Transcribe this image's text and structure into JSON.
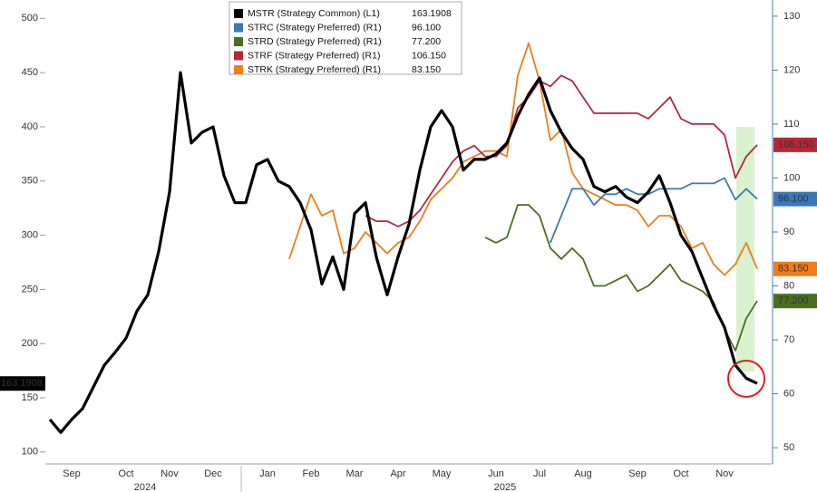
{
  "chart_data": {
    "type": "line",
    "categories": [
      null,
      null,
      "Sep",
      null,
      null,
      null,
      null,
      "Oct",
      null,
      null,
      null,
      "Nov",
      null,
      null,
      null,
      "Dec",
      null,
      null,
      null,
      null,
      "Jan",
      null,
      null,
      null,
      "Feb",
      null,
      null,
      null,
      "Mar",
      null,
      null,
      null,
      "Apr",
      null,
      null,
      null,
      "May",
      null,
      null,
      null,
      null,
      "Jun",
      null,
      null,
      null,
      "Jul",
      null,
      null,
      null,
      "Aug",
      null,
      null,
      null,
      null,
      "Sep",
      null,
      null,
      null,
      "Oct",
      null,
      null,
      null,
      "Nov",
      null,
      null,
      null
    ],
    "year_labels": [
      "2024",
      "2025"
    ],
    "ylim": [
      89,
      517
    ],
    "yticks": [
      100,
      150,
      200,
      250,
      300,
      350,
      400,
      450,
      500
    ],
    "y2lim": [
      47,
      133
    ],
    "y2ticks": [
      50,
      60,
      70,
      80,
      90,
      100,
      110,
      120,
      130
    ],
    "series": [
      {
        "name": "MSTR (Strategy Common) (L1)",
        "color": "#000000",
        "axis": "y",
        "values": [
          130,
          118,
          130,
          140,
          160,
          180,
          192,
          205,
          230,
          245,
          285,
          340,
          450,
          385,
          395,
          400,
          355,
          330,
          330,
          365,
          370,
          350,
          345,
          330,
          305,
          255,
          280,
          250,
          320,
          330,
          280,
          245,
          280,
          310,
          360,
          400,
          415,
          400,
          360,
          370,
          370,
          375,
          385,
          410,
          430,
          445,
          415,
          395,
          380,
          370,
          345,
          340,
          345,
          335,
          330,
          340,
          355,
          330,
          300,
          285,
          260,
          235,
          215,
          180,
          168,
          163.1908
        ]
      },
      {
        "name": "STRC (Strategy Preferred) (R1)",
        "color": "#3a78b5",
        "axis": "y2",
        "values": [
          null,
          null,
          null,
          null,
          null,
          null,
          null,
          null,
          null,
          null,
          null,
          null,
          null,
          null,
          null,
          null,
          null,
          null,
          null,
          null,
          null,
          null,
          null,
          null,
          null,
          null,
          null,
          null,
          null,
          null,
          null,
          null,
          null,
          null,
          null,
          null,
          null,
          null,
          null,
          null,
          null,
          null,
          null,
          null,
          null,
          null,
          88,
          93,
          98,
          98,
          95,
          97,
          97,
          98,
          97,
          97,
          98,
          98,
          98,
          99,
          99,
          99,
          100,
          96,
          98,
          96.1
        ],
        "value_labels": [
          null,
          null,
          null,
          null,
          null,
          null,
          null,
          null,
          null,
          null,
          null,
          null,
          null,
          null,
          null,
          null,
          null,
          null,
          null,
          null,
          null,
          null,
          null,
          null,
          null,
          null,
          null,
          null,
          null,
          null,
          null,
          null,
          null,
          null,
          null,
          null,
          null,
          null,
          null,
          null,
          null,
          null,
          null,
          null,
          null,
          null,
          null,
          null,
          null,
          null,
          null,
          null,
          null,
          null,
          null,
          null,
          null,
          null,
          null,
          null,
          null,
          null,
          null,
          null,
          null,
          "96.100"
        ]
      },
      {
        "name": "STRD (Strategy Preferred) (R1)",
        "color": "#4a6e1f",
        "axis": "y2",
        "values": [
          null,
          null,
          null,
          null,
          null,
          null,
          null,
          null,
          null,
          null,
          null,
          null,
          null,
          null,
          null,
          null,
          null,
          null,
          null,
          null,
          null,
          null,
          null,
          null,
          null,
          null,
          null,
          null,
          null,
          null,
          null,
          null,
          null,
          null,
          null,
          null,
          null,
          null,
          null,
          null,
          89,
          88,
          89,
          95,
          95,
          93,
          87,
          85,
          87,
          85,
          80,
          80,
          81,
          82,
          79,
          80,
          82,
          84,
          81,
          80,
          79,
          77,
          72,
          68,
          74,
          77.2
        ],
        "value_labels": [
          null,
          null,
          null,
          null,
          null,
          null,
          null,
          null,
          null,
          null,
          null,
          null,
          null,
          null,
          null,
          null,
          null,
          null,
          null,
          null,
          null,
          null,
          null,
          null,
          null,
          null,
          null,
          null,
          null,
          null,
          null,
          null,
          null,
          null,
          null,
          null,
          null,
          null,
          null,
          null,
          null,
          null,
          null,
          null,
          null,
          null,
          null,
          null,
          null,
          null,
          null,
          null,
          null,
          null,
          null,
          null,
          null,
          null,
          null,
          null,
          null,
          null,
          null,
          null,
          null,
          "77.200"
        ]
      },
      {
        "name": "STRF (Strategy Preferred) (R1)",
        "color": "#b5283a",
        "axis": "y2",
        "values": [
          null,
          null,
          null,
          null,
          null,
          null,
          null,
          null,
          null,
          null,
          null,
          null,
          null,
          null,
          null,
          null,
          null,
          null,
          null,
          null,
          null,
          null,
          null,
          null,
          null,
          null,
          null,
          null,
          null,
          93,
          92,
          92,
          91,
          92,
          94,
          97,
          100,
          103,
          105,
          106,
          104,
          104,
          106,
          113,
          115,
          118,
          117,
          119,
          118,
          115,
          112,
          112,
          112,
          112,
          112,
          111,
          113,
          115,
          111,
          110,
          110,
          110,
          108,
          100,
          104,
          106.15
        ],
        "value_labels": [
          null,
          null,
          null,
          null,
          null,
          null,
          null,
          null,
          null,
          null,
          null,
          null,
          null,
          null,
          null,
          null,
          null,
          null,
          null,
          null,
          null,
          null,
          null,
          null,
          null,
          null,
          null,
          null,
          null,
          null,
          null,
          null,
          null,
          null,
          null,
          null,
          null,
          null,
          null,
          null,
          null,
          null,
          null,
          null,
          null,
          null,
          null,
          null,
          null,
          null,
          null,
          null,
          null,
          null,
          null,
          null,
          null,
          null,
          null,
          null,
          null,
          null,
          null,
          null,
          null,
          "106.150"
        ]
      },
      {
        "name": "STRK (Strategy Preferred) (R1)",
        "color": "#ef7d1a",
        "axis": "y2",
        "values": [
          null,
          null,
          null,
          null,
          null,
          null,
          null,
          null,
          null,
          null,
          null,
          null,
          null,
          null,
          null,
          null,
          null,
          null,
          null,
          null,
          null,
          null,
          85,
          91,
          97,
          93,
          94,
          86,
          87,
          90,
          88,
          86,
          88,
          89,
          92,
          96,
          98,
          100,
          103,
          104,
          105,
          105,
          104,
          119,
          125,
          118,
          107,
          109,
          101,
          98,
          97,
          96,
          95,
          95,
          94,
          91,
          93,
          93,
          91,
          87,
          88,
          84,
          82,
          84,
          88,
          83.15
        ],
        "value_labels": [
          null,
          null,
          null,
          null,
          null,
          null,
          null,
          null,
          null,
          null,
          null,
          null,
          null,
          null,
          null,
          null,
          null,
          null,
          null,
          null,
          null,
          null,
          null,
          null,
          null,
          null,
          null,
          null,
          null,
          null,
          null,
          null,
          null,
          null,
          null,
          null,
          null,
          null,
          null,
          null,
          null,
          null,
          null,
          null,
          null,
          null,
          null,
          null,
          null,
          null,
          null,
          null,
          null,
          null,
          null,
          null,
          null,
          null,
          null,
          null,
          null,
          null,
          null,
          null,
          null,
          "83.150"
        ]
      }
    ]
  }
}
